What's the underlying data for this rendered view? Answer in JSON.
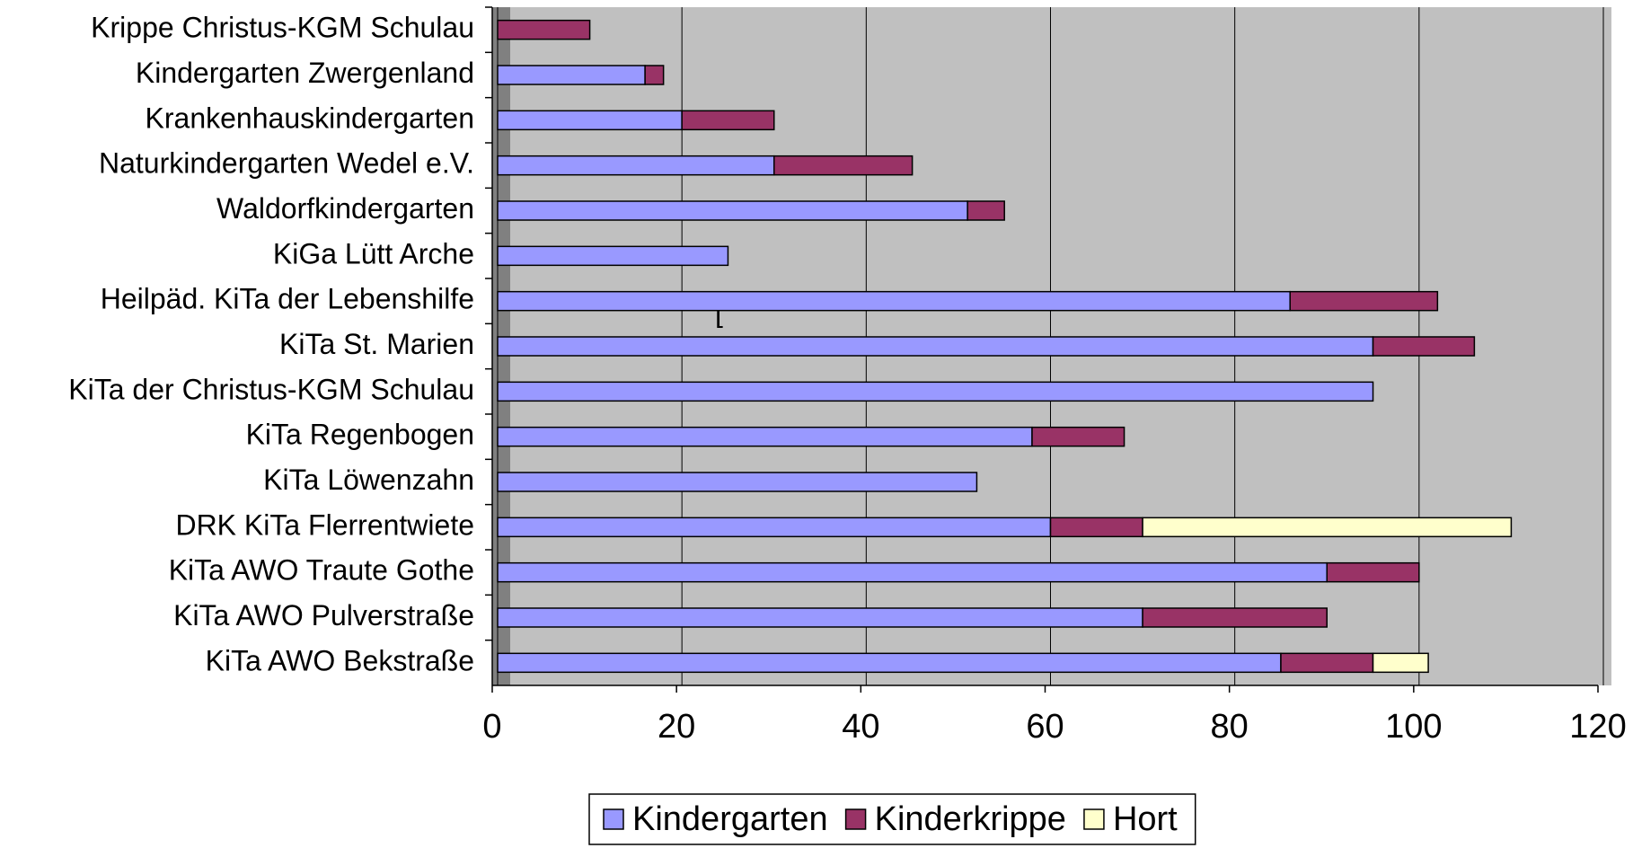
{
  "chart_data": {
    "type": "stacked_barh",
    "categories": [
      "Krippe Christus-KGM Schulau",
      "Kindergarten Zwergenland",
      "Krankenhauskindergarten",
      "Naturkindergarten Wedel e.V.",
      "Waldorfkindergarten",
      "KiGa Lütt Arche",
      "Heilpäd. KiTa der Lebenshilfe",
      "KiTa St. Marien",
      "KiTa der Christus-KGM Schulau",
      "KiTa Regenbogen",
      "KiTa Löwenzahn",
      "DRK KiTa Flerrentwiete",
      "KiTa AWO Traute Gothe",
      "KiTa AWO Pulverstraße",
      "KiTa AWO Bekstraße"
    ],
    "series": [
      {
        "name": "Kindergarten",
        "color": "#9999ff",
        "values": [
          0,
          16,
          20,
          30,
          51,
          25,
          86,
          95,
          95,
          58,
          52,
          60,
          90,
          70,
          85
        ]
      },
      {
        "name": "Kinderkrippe",
        "color": "#993366",
        "values": [
          10,
          2,
          10,
          15,
          4,
          0,
          16,
          11,
          0,
          10,
          0,
          10,
          10,
          20,
          10
        ]
      },
      {
        "name": "Hort",
        "color": "#ffffcc",
        "values": [
          0,
          0,
          0,
          0,
          0,
          0,
          0,
          0,
          0,
          0,
          0,
          40,
          0,
          0,
          6
        ]
      }
    ],
    "xlim": [
      0,
      120
    ],
    "xticks": [
      0,
      20,
      40,
      60,
      80,
      100,
      120
    ],
    "grid": true,
    "annotation": "["
  }
}
